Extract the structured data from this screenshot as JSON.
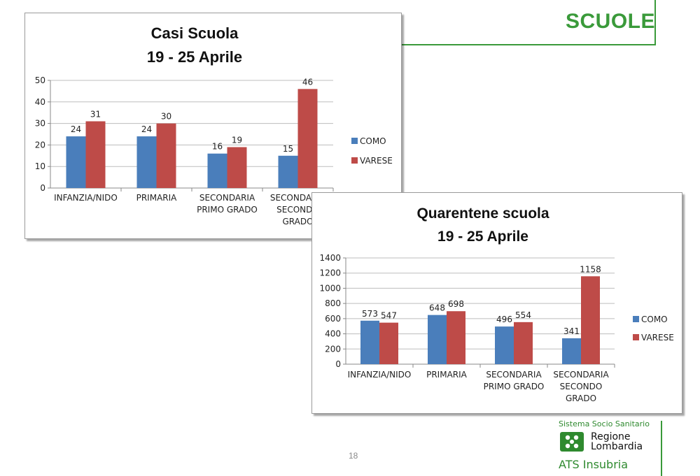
{
  "page": {
    "heading": "SCUOLE",
    "page_number": "18",
    "colors": {
      "accent": "#3a9a3a",
      "como": "#4a7ebb",
      "varese": "#be4b48"
    }
  },
  "logo": {
    "line1": "Sistema Socio Sanitario",
    "line2a": "Regione",
    "line2b": "Lombardia",
    "line3": "ATS Insubria",
    "icon": "lombardy-rose-icon"
  },
  "chart_data": [
    {
      "type": "bar",
      "title": [
        "Casi Scuola",
        "19 - 25 Aprile"
      ],
      "categories": [
        [
          "INFANZIA/NIDO"
        ],
        [
          "PRIMARIA"
        ],
        [
          "SECONDARIA",
          "PRIMO GRADO"
        ],
        [
          "SECONDARIA",
          "SECONDO",
          "GRADO"
        ]
      ],
      "series": [
        {
          "name": "COMO",
          "values": [
            24,
            24,
            16,
            15
          ],
          "color": "#4a7ebb"
        },
        {
          "name": "VARESE",
          "values": [
            31,
            30,
            19,
            46
          ],
          "color": "#be4b48"
        }
      ],
      "ylim": [
        0,
        50
      ],
      "yticks": [
        0,
        10,
        20,
        30,
        40,
        50
      ],
      "grid": true,
      "legend": "right"
    },
    {
      "type": "bar",
      "title": [
        "Quarentene scuola",
        "19 - 25 Aprile"
      ],
      "categories": [
        [
          "INFANZIA/NIDO"
        ],
        [
          "PRIMARIA"
        ],
        [
          "SECONDARIA",
          "PRIMO GRADO"
        ],
        [
          "SECONDARIA",
          "SECONDO",
          "GRADO"
        ]
      ],
      "series": [
        {
          "name": "COMO",
          "values": [
            573,
            648,
            496,
            341
          ],
          "color": "#4a7ebb"
        },
        {
          "name": "VARESE",
          "values": [
            547,
            698,
            554,
            1158
          ],
          "color": "#be4b48"
        }
      ],
      "ylim": [
        0,
        1400
      ],
      "yticks": [
        0,
        200,
        400,
        600,
        800,
        1000,
        1200,
        1400
      ],
      "grid": true,
      "legend": "right"
    }
  ]
}
